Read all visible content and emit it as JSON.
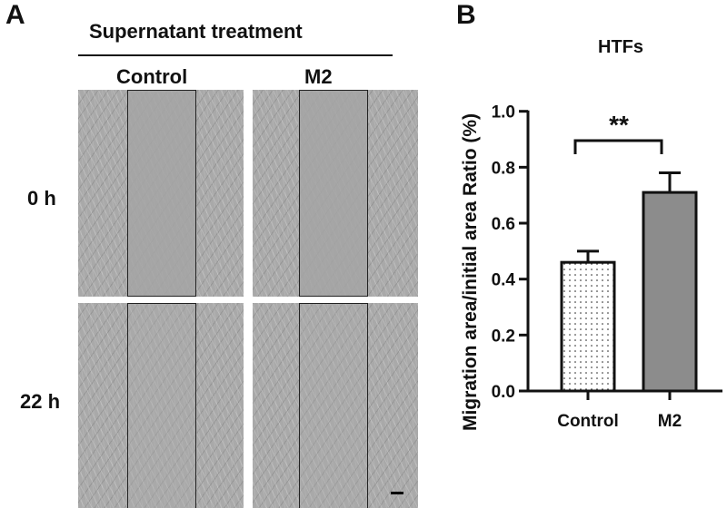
{
  "panel_a": {
    "letter": "A",
    "header": "Supernatant treatment",
    "columns": [
      "Control",
      "M2"
    ],
    "rows": [
      "0 h",
      "22 h"
    ]
  },
  "panel_b": {
    "letter": "B"
  },
  "chart_data": {
    "type": "bar",
    "title": "HTFs",
    "ylabel": "Migration area/initial area Ratio (%)",
    "xlabel": "",
    "categories": [
      "Control",
      "M2"
    ],
    "values": [
      0.46,
      0.71
    ],
    "error_upper": [
      0.5,
      0.78
    ],
    "ylim": [
      0,
      1.0
    ],
    "yticks": [
      "0.0",
      "0.2",
      "0.4",
      "0.6",
      "0.8",
      "1.0"
    ],
    "bar_fills": [
      "dotted-white",
      "#8c8c8c"
    ],
    "significance": {
      "between": [
        "Control",
        "M2"
      ],
      "label": "**"
    },
    "grid": false
  }
}
